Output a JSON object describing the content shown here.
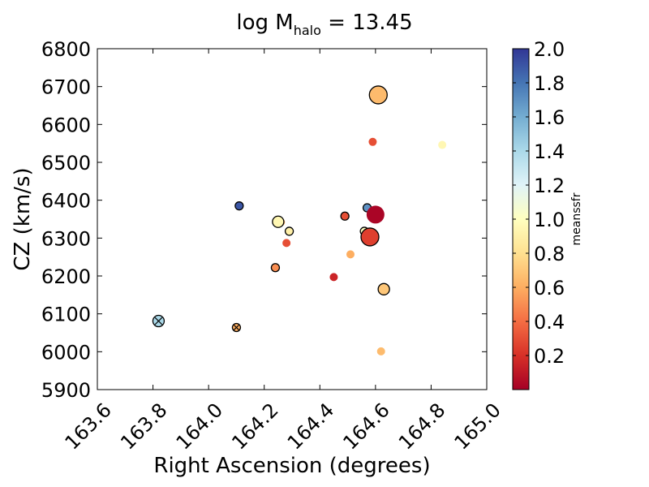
{
  "chart_data": {
    "type": "scatter",
    "title_main": "log M",
    "title_sub": "halo",
    "title_value": " = 13.45",
    "xlabel": "Right Ascension (degrees)",
    "ylabel": "CZ (km/s)",
    "xlim": [
      163.6,
      165.0
    ],
    "ylim": [
      5900,
      6800
    ],
    "xticks": [
      "163.6",
      "163.8",
      "164.0",
      "164.2",
      "164.4",
      "164.6",
      "164.8",
      "165.0"
    ],
    "yticks": [
      "5900",
      "6000",
      "6100",
      "6200",
      "6300",
      "6400",
      "6500",
      "6600",
      "6700",
      "6800"
    ],
    "colorbar": {
      "label": "meanssfr",
      "range": [
        0.0,
        2.0
      ],
      "colormap": "RdYlBu",
      "ticks": [
        "0.2",
        "0.4",
        "0.6",
        "0.8",
        "1.0",
        "1.2",
        "1.4",
        "1.6",
        "1.8",
        "2.0"
      ]
    },
    "points": [
      {
        "x": 164.61,
        "y": 6678,
        "c": 0.65,
        "size": "large",
        "edge": true,
        "marker": "circle"
      },
      {
        "x": 164.59,
        "y": 6554,
        "c": 0.3,
        "size": "small",
        "edge": false,
        "marker": "circle"
      },
      {
        "x": 164.84,
        "y": 6546,
        "c": 0.95,
        "size": "small",
        "edge": false,
        "marker": "circle"
      },
      {
        "x": 164.11,
        "y": 6385,
        "c": 1.9,
        "size": "small",
        "edge": true,
        "marker": "circle"
      },
      {
        "x": 164.57,
        "y": 6380,
        "c": 1.7,
        "size": "small",
        "edge": true,
        "marker": "circle"
      },
      {
        "x": 164.6,
        "y": 6362,
        "c": 0.02,
        "size": "large",
        "edge": false,
        "marker": "circle"
      },
      {
        "x": 164.49,
        "y": 6358,
        "c": 0.3,
        "size": "small",
        "edge": true,
        "marker": "circle"
      },
      {
        "x": 164.26,
        "y": 6342,
        "c": 0.6,
        "size": "small",
        "edge": false,
        "marker": "circle"
      },
      {
        "x": 164.25,
        "y": 6343,
        "c": 0.95,
        "size": "medium",
        "edge": true,
        "marker": "circle"
      },
      {
        "x": 164.29,
        "y": 6318,
        "c": 0.9,
        "size": "small",
        "edge": true,
        "marker": "circle"
      },
      {
        "x": 164.56,
        "y": 6318,
        "c": 1.0,
        "size": "small",
        "edge": true,
        "marker": "circle"
      },
      {
        "x": 164.58,
        "y": 6303,
        "c": 0.25,
        "size": "large",
        "edge": true,
        "marker": "circle"
      },
      {
        "x": 164.28,
        "y": 6287,
        "c": 0.3,
        "size": "small",
        "edge": false,
        "marker": "circle"
      },
      {
        "x": 164.51,
        "y": 6257,
        "c": 0.6,
        "size": "small",
        "edge": false,
        "marker": "circle"
      },
      {
        "x": 164.24,
        "y": 6222,
        "c": 0.5,
        "size": "small",
        "edge": true,
        "marker": "circle"
      },
      {
        "x": 164.45,
        "y": 6197,
        "c": 0.15,
        "size": "small",
        "edge": false,
        "marker": "circle"
      },
      {
        "x": 164.63,
        "y": 6165,
        "c": 0.7,
        "size": "medium",
        "edge": true,
        "marker": "circle"
      },
      {
        "x": 163.82,
        "y": 6081,
        "c": 1.4,
        "size": "medium",
        "edge": true,
        "marker": "cross"
      },
      {
        "x": 164.1,
        "y": 6064,
        "c": 0.6,
        "size": "small",
        "edge": true,
        "marker": "cross"
      },
      {
        "x": 164.62,
        "y": 6001,
        "c": 0.65,
        "size": "small",
        "edge": false,
        "marker": "circle"
      }
    ]
  }
}
